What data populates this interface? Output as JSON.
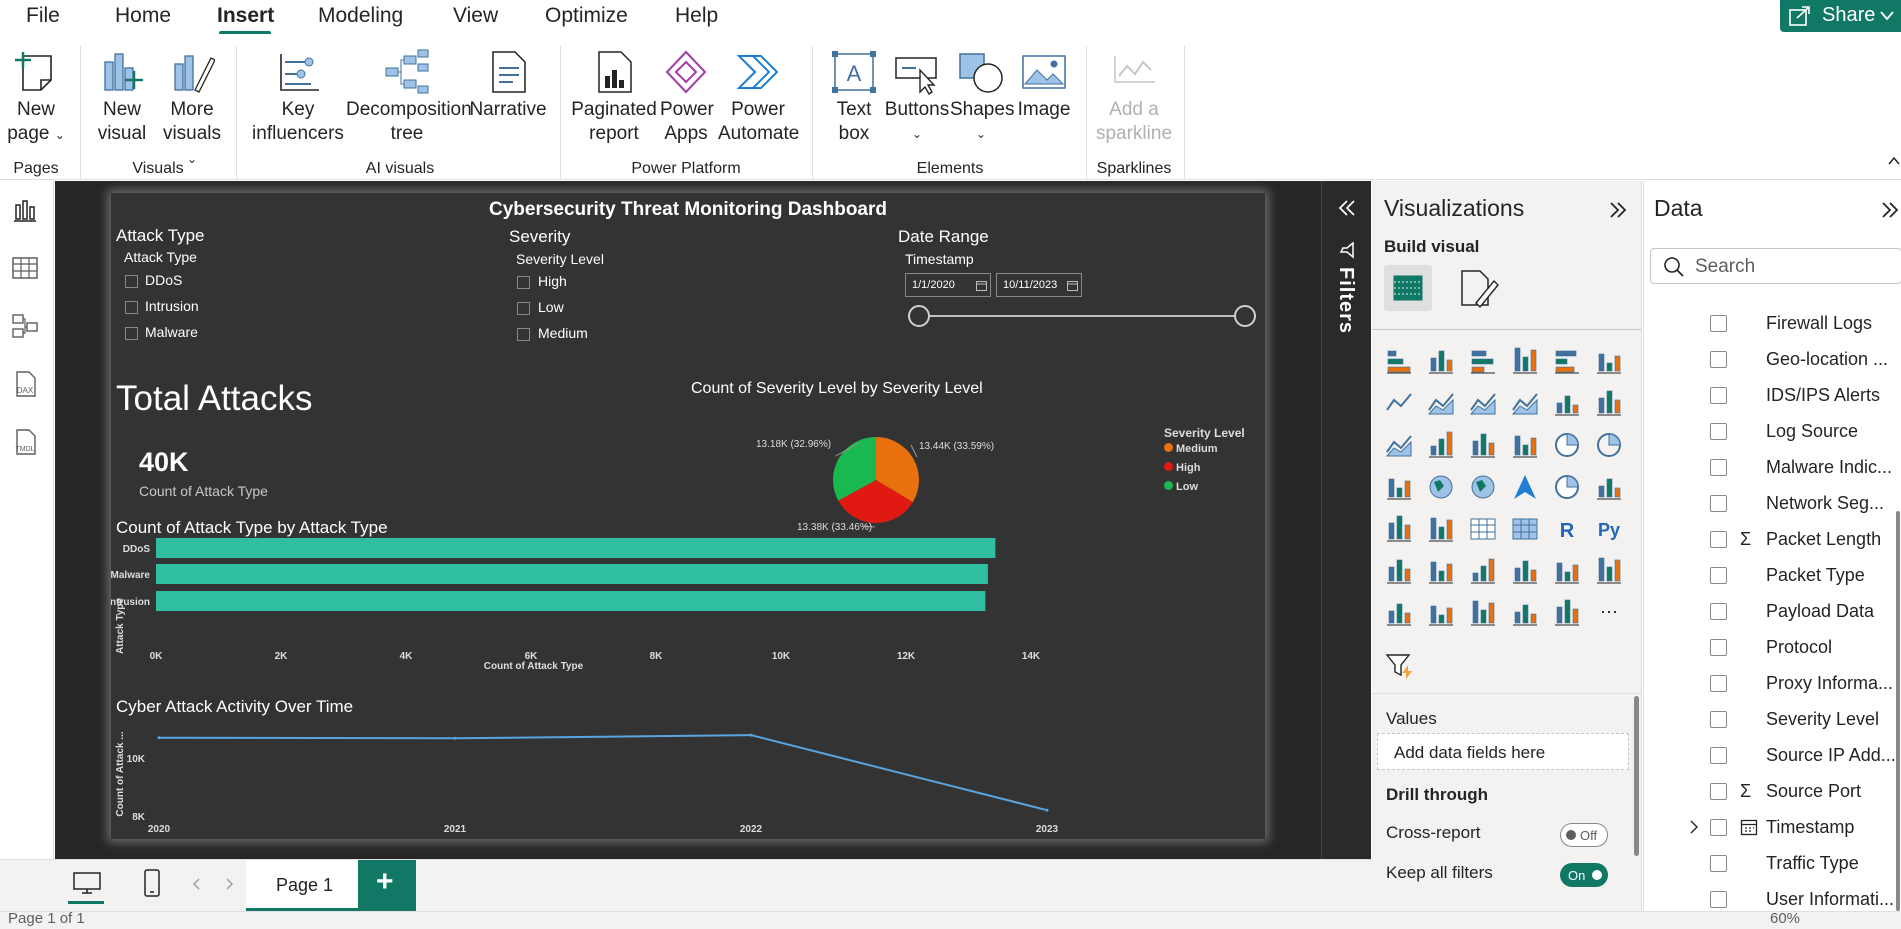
{
  "menu": {
    "items": [
      "File",
      "Home",
      "Insert",
      "Modeling",
      "View",
      "Optimize",
      "Help"
    ],
    "active": "Insert",
    "share_label": "Share"
  },
  "ribbon": {
    "pages_group": "Pages",
    "new_page": [
      "New",
      "page"
    ],
    "visuals_group": "Visuals",
    "new_visual": [
      "New",
      "visual"
    ],
    "more_visuals": [
      "More",
      "visuals"
    ],
    "ai_group": "AI visuals",
    "key_influencers": [
      "Key",
      "influencers"
    ],
    "decomposition_tree": [
      "Decomposition",
      "tree"
    ],
    "narrative": "Narrative",
    "platform_group": "Power Platform",
    "paginated_report": [
      "Paginated",
      "report"
    ],
    "power_apps": [
      "Power",
      "Apps"
    ],
    "power_automate": [
      "Power",
      "Automate"
    ],
    "elements_group": "Elements",
    "text_box": [
      "Text",
      "box"
    ],
    "buttons": "Buttons",
    "shapes": "Shapes",
    "image": "Image",
    "sparklines_group": "Sparklines",
    "add_sparkline": [
      "Add a",
      "sparkline"
    ]
  },
  "report": {
    "title": "Cybersecurity Threat Monitoring Dashboard",
    "slicers": {
      "attack_type": {
        "header": "Attack Type",
        "field": "Attack Type",
        "options": [
          "DDoS",
          "Intrusion",
          "Malware"
        ]
      },
      "severity": {
        "header": "Severity",
        "field": "Severity Level",
        "options": [
          "High",
          "Low",
          "Medium"
        ]
      },
      "date_range": {
        "header": "Date Range",
        "field": "Timestamp",
        "start": "1/1/2020",
        "end": "10/11/2023"
      }
    },
    "total_attacks": {
      "heading": "Total Attacks",
      "value": "40K",
      "caption": "Count of Attack Type"
    }
  },
  "pie_chart": {
    "type": "pie",
    "title": "Count of Severity Level by Severity Level",
    "legend_title": "Severity Level",
    "slices": [
      {
        "name": "Medium",
        "value": 13.44,
        "label": "13.44K (33.59%)",
        "color": "#e8700d"
      },
      {
        "name": "High",
        "value": 13.38,
        "label": "13.38K (33.46%)",
        "color": "#e01a12"
      },
      {
        "name": "Low",
        "value": 13.18,
        "label": "13.18K (32.96%)",
        "color": "#1ab850"
      }
    ]
  },
  "chart_data": [
    {
      "type": "pie",
      "title": "Count of Severity Level by Severity Level",
      "categories": [
        "Medium",
        "High",
        "Low"
      ],
      "values": [
        13440,
        13380,
        13180
      ],
      "legend": "Severity Level"
    },
    {
      "type": "bar",
      "title": "Count of Attack Type by Attack Type",
      "categories": [
        "DDoS",
        "Malware",
        "Intrusion"
      ],
      "values": [
        13430,
        13310,
        13270
      ],
      "xlabel": "Count of Attack Type",
      "ylabel": "Attack Type",
      "xlim": [
        0,
        14000
      ],
      "xticks": [
        "0K",
        "2K",
        "4K",
        "6K",
        "8K",
        "10K",
        "12K",
        "14K"
      ],
      "color": "#2ebfa0"
    },
    {
      "type": "line",
      "title": "Cyber Attack Activity Over Time",
      "x": [
        "2020",
        "2021",
        "2022",
        "2023"
      ],
      "values": [
        10700,
        10680,
        10790,
        8200
      ],
      "ylabel": "Count of Attack ...",
      "yticks": [
        "8K",
        "10K"
      ],
      "ylim": [
        8000,
        11000
      ],
      "color": "#5aa5e0"
    }
  ],
  "filters_pane": {
    "label": "Filters"
  },
  "viz_pane": {
    "title": "Visualizations",
    "build_visual": "Build visual",
    "values_label": "Values",
    "add_fields_placeholder": "Add data fields here",
    "drill_through": "Drill through",
    "cross_report": "Cross-report",
    "cross_report_state": "Off",
    "keep_filters": "Keep all filters",
    "keep_filters_state": "On",
    "more_icon_glyph": "⋯"
  },
  "data_pane": {
    "title": "Data",
    "search_placeholder": "Search",
    "fields": [
      {
        "name": "Firewall Logs",
        "type": ""
      },
      {
        "name": "Geo-location ...",
        "type": ""
      },
      {
        "name": "IDS/IPS Alerts",
        "type": ""
      },
      {
        "name": "Log Source",
        "type": ""
      },
      {
        "name": "Malware Indic...",
        "type": ""
      },
      {
        "name": "Network Seg...",
        "type": ""
      },
      {
        "name": "Packet Length",
        "type": "sum"
      },
      {
        "name": "Packet Type",
        "type": ""
      },
      {
        "name": "Payload Data",
        "type": ""
      },
      {
        "name": "Protocol",
        "type": ""
      },
      {
        "name": "Proxy Informa...",
        "type": ""
      },
      {
        "name": "Severity Level",
        "type": ""
      },
      {
        "name": "Source IP Add...",
        "type": ""
      },
      {
        "name": "Source Port",
        "type": "sum"
      },
      {
        "name": "Timestamp",
        "type": "date"
      },
      {
        "name": "Traffic Type",
        "type": ""
      },
      {
        "name": "User Informati...",
        "type": ""
      }
    ],
    "sum_glyph": "Σ"
  },
  "tabbar": {
    "page_tab": "Page 1",
    "add_glyph": "+"
  },
  "status": {
    "pages": "Page 1 of 1",
    "zoom": "60%"
  }
}
